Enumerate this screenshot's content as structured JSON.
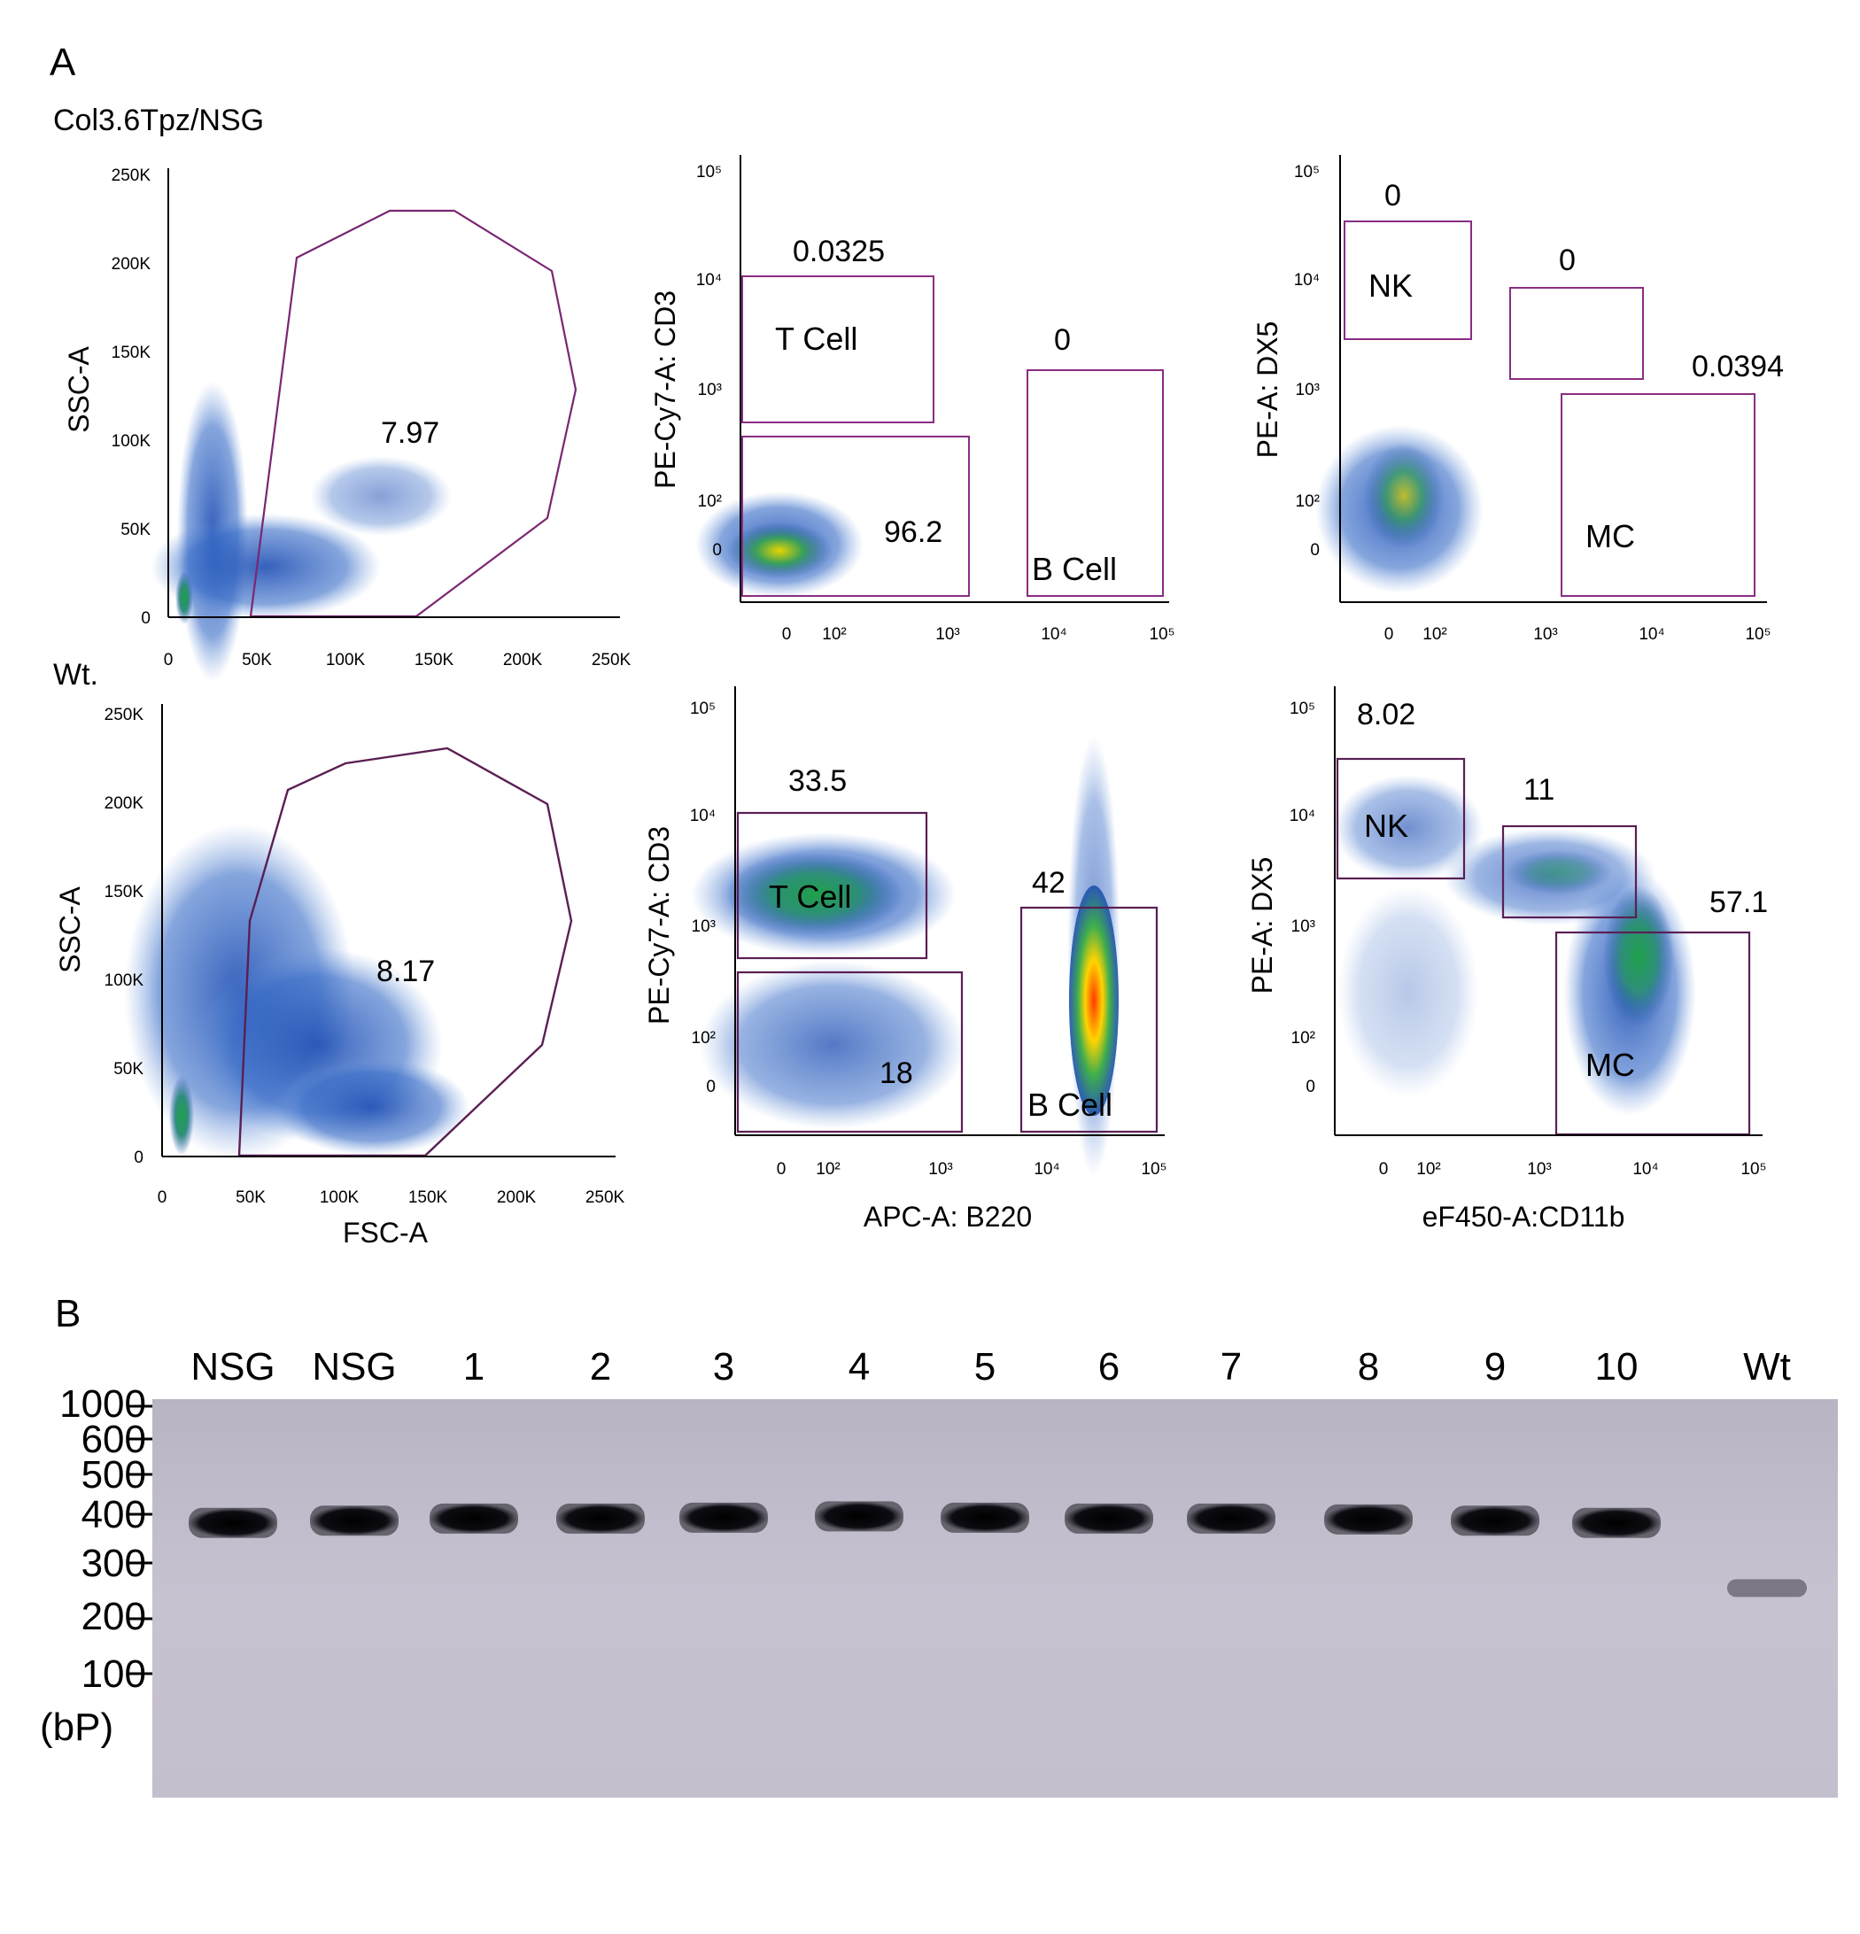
{
  "figure": {
    "panel_a": "A",
    "panel_b": "B",
    "rows": [
      {
        "label": "Col3.6Tpz/NSG",
        "scatter": {
          "gate_value": "7.97",
          "y_axis_label": "SSC-A",
          "x_axis_label": ""
        },
        "tb": {
          "y_axis_label": "PE-Cy7-A: CD3",
          "x_axis_label": "",
          "t_value": "0.0325",
          "b_value": "0",
          "dn_value": "96.2",
          "t_label": "T Cell",
          "b_label": "B Cell"
        },
        "nkmc": {
          "y_axis_label": "PE-A: DX5",
          "x_axis_label": "",
          "nk_value": "0",
          "mid_value": "0",
          "mc_value": "0.0394",
          "nk_label": "NK",
          "mc_label": "MC"
        }
      },
      {
        "label": "Wt.",
        "scatter": {
          "gate_value": "8.17",
          "y_axis_label": "SSC-A",
          "x_axis_label": "FSC-A"
        },
        "tb": {
          "y_axis_label": "PE-Cy7-A: CD3",
          "x_axis_label": "APC-A: B220",
          "t_value": "33.5",
          "b_value": "42",
          "dn_value": "18",
          "t_label": "T Cell",
          "b_label": "B Cell"
        },
        "nkmc": {
          "y_axis_label": "PE-A: DX5",
          "x_axis_label": "eF450-A:CD11b",
          "nk_value": "8.02",
          "mid_value": "11",
          "mc_value": "57.1",
          "nk_label": "NK",
          "mc_label": "MC"
        }
      }
    ],
    "scatter_x_ticks": [
      "0",
      "50K",
      "100K",
      "150K",
      "200K",
      "250K"
    ],
    "scatter_y_ticks": [
      "0",
      "50K",
      "100K",
      "150K",
      "200K",
      "250K"
    ],
    "log_ticks": [
      "0",
      "10²",
      "10³",
      "10⁴",
      "10⁵"
    ],
    "gel": {
      "lanes": [
        "NSG",
        "NSG",
        "1",
        "2",
        "3",
        "4",
        "5",
        "6",
        "7",
        "8",
        "9",
        "10",
        "Wt"
      ],
      "ladder": [
        "1000",
        "600",
        "500",
        "400",
        "300",
        "200",
        "100"
      ],
      "unit": "(bP)",
      "band_bp": [
        380,
        385,
        390,
        390,
        392,
        395,
        392,
        390,
        390,
        388,
        385,
        380,
        250
      ]
    }
  }
}
